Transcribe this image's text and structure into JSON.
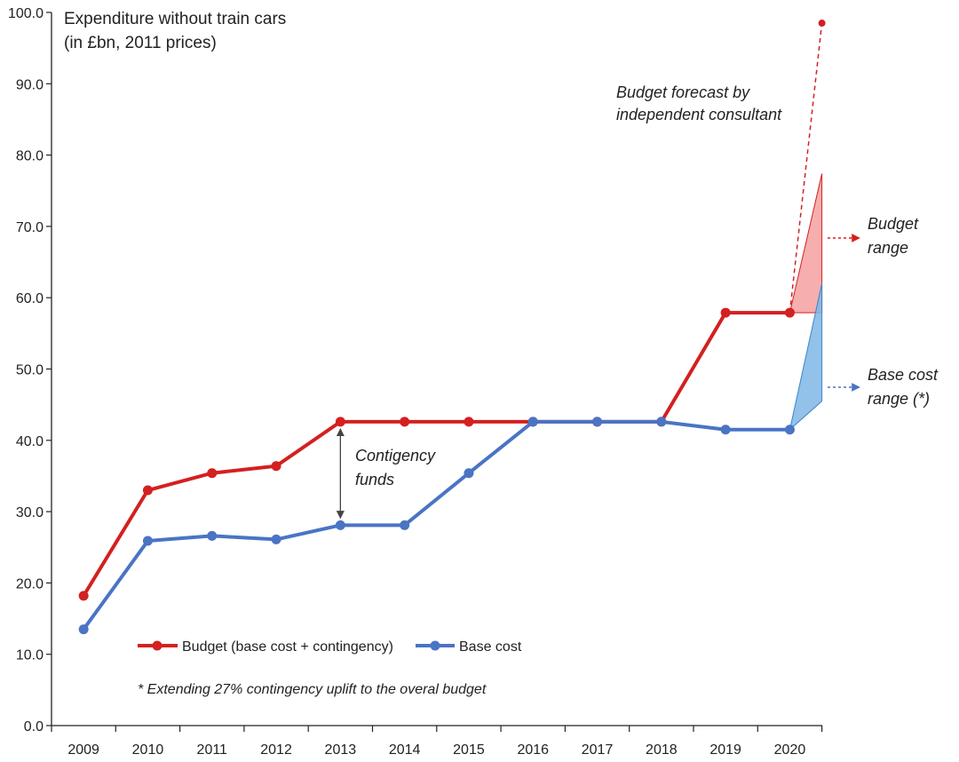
{
  "chart_data": {
    "type": "line",
    "title": "Expenditure without train cars",
    "subtitle": "(in £bn, 2011 prices)",
    "xlabel": "",
    "ylabel": "",
    "ylim": [
      0,
      100
    ],
    "yticks": [
      "0.0",
      "10.0",
      "20.0",
      "30.0",
      "40.0",
      "50.0",
      "60.0",
      "70.0",
      "80.0",
      "90.0",
      "100.0"
    ],
    "categories": [
      "2009",
      "2010",
      "2011",
      "2012",
      "2013",
      "2014",
      "2015",
      "2016",
      "2017",
      "2018",
      "2019",
      "2020"
    ],
    "series": [
      {
        "name": "Budget (base cost + contingency)",
        "color": "#d42020",
        "values": [
          18.2,
          33.0,
          35.4,
          36.4,
          42.6,
          42.6,
          42.6,
          42.6,
          42.6,
          42.6,
          57.9,
          57.9
        ]
      },
      {
        "name": "Base cost",
        "color": "#4a74c4",
        "values": [
          13.5,
          25.9,
          26.6,
          26.1,
          28.1,
          28.1,
          35.4,
          42.6,
          42.6,
          42.6,
          41.5,
          41.5
        ]
      }
    ],
    "independent_forecast": {
      "x": 2020.5,
      "value": 98.5,
      "from_value": 57.9
    },
    "budget_range": {
      "low": 57.9,
      "high": 77.4
    },
    "base_cost_range": {
      "low": 45.5,
      "high": 62.0
    },
    "contingency_marker": {
      "x": "2013",
      "from_value": 42.6,
      "to_value": 28.1
    },
    "grid": false,
    "legend_position": "bottom-left",
    "annotations": {
      "contingency": [
        "Contigency",
        "funds"
      ],
      "forecast": [
        "Budget forecast by",
        "independent consultant"
      ],
      "budget_range": [
        "Budget",
        "range"
      ],
      "base_cost_range": [
        "Base cost",
        "range (*)"
      ],
      "footnote": "* Extending 27% contingency uplift to the overal budget"
    }
  }
}
